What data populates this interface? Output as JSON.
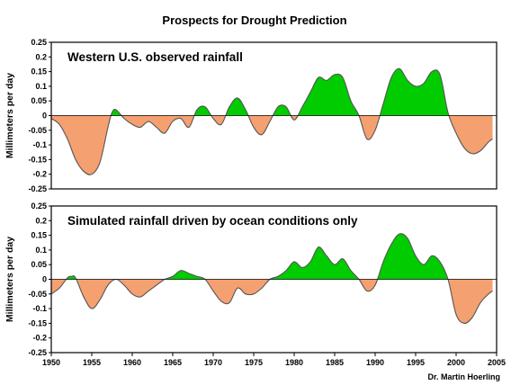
{
  "title": "Prospects for Drought Prediction",
  "credit": "Dr. Martin Hoerling",
  "colors": {
    "positive": "#00cc00",
    "negative": "#f5a070",
    "line": "#555555"
  },
  "chart_data": [
    {
      "type": "area",
      "title": "Western U.S. observed rainfall",
      "ylabel": "Millimeters per day",
      "xlim": [
        1950,
        2005
      ],
      "ylim": [
        -0.25,
        0.25
      ],
      "yticks": [
        "0.25",
        "0.2",
        "0.15",
        "0.1",
        "0.05",
        "0",
        "-0.05",
        "-0.1",
        "-0.15",
        "-0.2",
        "-0.25"
      ],
      "x": [
        1950,
        1951,
        1952,
        1953,
        1954,
        1955,
        1956,
        1957,
        1957.5,
        1958,
        1959,
        1960,
        1961,
        1962,
        1963,
        1964,
        1965,
        1966,
        1967,
        1968,
        1969,
        1970,
        1971,
        1972,
        1973,
        1974,
        1975,
        1976,
        1977,
        1978,
        1979,
        1980,
        1981,
        1982,
        1983,
        1984,
        1985,
        1986,
        1987,
        1988,
        1989,
        1990,
        1991,
        1992,
        1993,
        1994,
        1995,
        1996,
        1997,
        1998,
        1999,
        2000,
        2001,
        2002,
        2003,
        2004,
        2004.5
      ],
      "values": [
        -0.01,
        -0.03,
        -0.08,
        -0.15,
        -0.19,
        -0.2,
        -0.16,
        -0.04,
        0.01,
        0.02,
        -0.01,
        -0.03,
        -0.04,
        -0.02,
        -0.04,
        -0.06,
        -0.02,
        -0.01,
        -0.04,
        0.02,
        0.03,
        -0.01,
        -0.03,
        0.03,
        0.06,
        0.02,
        -0.04,
        -0.065,
        -0.02,
        0.03,
        0.03,
        -0.015,
        0.03,
        0.08,
        0.13,
        0.12,
        0.14,
        0.13,
        0.05,
        0.0,
        -0.08,
        -0.05,
        0.04,
        0.13,
        0.16,
        0.12,
        0.1,
        0.11,
        0.15,
        0.14,
        0.01,
        -0.06,
        -0.11,
        -0.13,
        -0.12,
        -0.09,
        -0.08
      ]
    },
    {
      "type": "area",
      "title": "Simulated rainfall driven by ocean conditions only",
      "ylabel": "Millimeters per day",
      "xlim": [
        1950,
        2005
      ],
      "ylim": [
        -0.25,
        0.25
      ],
      "yticks": [
        "0.25",
        "0.2",
        "0.15",
        "0.1",
        "0.05",
        "0",
        "-0.05",
        "-0.1",
        "-0.15",
        "-0.2",
        "-0.25"
      ],
      "xticks": [
        "1950",
        "1955",
        "1960",
        "1965",
        "1970",
        "1975",
        "1980",
        "1985",
        "1990",
        "1995",
        "2000",
        "2005"
      ],
      "x": [
        1950,
        1951,
        1952,
        1952.5,
        1953,
        1954,
        1955,
        1956,
        1957,
        1958,
        1959,
        1960,
        1961,
        1962,
        1963,
        1964,
        1965,
        1966,
        1967,
        1968,
        1969,
        1970,
        1971,
        1972,
        1973,
        1974,
        1975,
        1976,
        1977,
        1978,
        1979,
        1980,
        1981,
        1982,
        1983,
        1984,
        1985,
        1986,
        1987,
        1988,
        1989,
        1990,
        1991,
        1992,
        1993,
        1994,
        1995,
        1996,
        1997,
        1998,
        1999,
        2000,
        2001,
        2002,
        2003,
        2004,
        2004.5
      ],
      "values": [
        -0.05,
        -0.03,
        0.005,
        0.01,
        0.005,
        -0.06,
        -0.1,
        -0.07,
        -0.02,
        0.0,
        -0.02,
        -0.05,
        -0.06,
        -0.04,
        -0.02,
        0.0,
        0.01,
        0.03,
        0.02,
        0.01,
        0.0,
        -0.04,
        -0.075,
        -0.08,
        -0.03,
        -0.05,
        -0.05,
        -0.03,
        0.0,
        0.01,
        0.03,
        0.06,
        0.04,
        0.06,
        0.11,
        0.08,
        0.05,
        0.07,
        0.03,
        0.0,
        -0.04,
        -0.02,
        0.06,
        0.12,
        0.155,
        0.14,
        0.08,
        0.05,
        0.08,
        0.06,
        0.0,
        -0.12,
        -0.15,
        -0.13,
        -0.08,
        -0.05,
        -0.04
      ]
    }
  ]
}
